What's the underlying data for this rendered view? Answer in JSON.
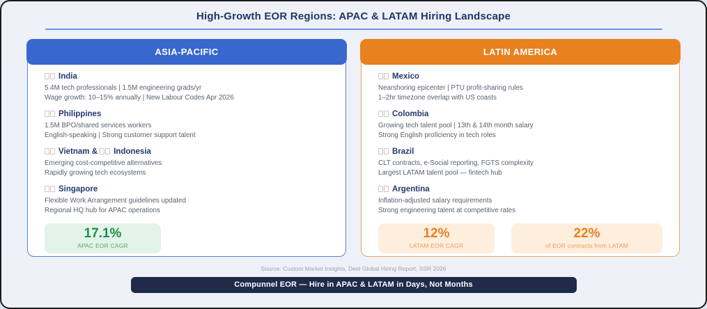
{
  "title": "High-Growth EOR Regions: APAC & LATAM Hiring Landscape",
  "source": "Source: Custom Market Insights, Deel Global Hiring Report, SSR 2026",
  "footer": "Compunnel EOR — Hire in APAC & LATAM in Days, Not Months",
  "colors": {
    "title_text": "#1e3765",
    "divider": "#6b93da",
    "footer_bg": "#1f2b48",
    "apac_accent": "#3867ce",
    "latam_accent": "#e8811f",
    "green_stat": "#1b8f4c"
  },
  "panels": [
    {
      "id": "asia-pacific",
      "header": "ASIA-PACIFIC",
      "colors": {
        "header_bg": "#3867ce",
        "border": "#5b82d8"
      },
      "entries": [
        {
          "names": [
            "India"
          ],
          "lines": [
            "5.4M tech professionals | 1.5M engineering grads/yr",
            "Wage growth: 10–15% annually | New Labour Codes Apr 2026"
          ]
        },
        {
          "names": [
            "Philippines"
          ],
          "lines": [
            "1.5M BPO/shared services workers",
            "English-speaking | Strong customer support talent"
          ]
        },
        {
          "names": [
            "Vietnam &",
            "Indonesia"
          ],
          "lines": [
            "Emerging cost-competitive alternatives",
            "Rapidly growing tech ecosystems"
          ]
        },
        {
          "names": [
            "Singapore"
          ],
          "lines": [
            "Flexible Work Arrangement guidelines updated",
            "Regional HQ hub for APAC operations"
          ]
        }
      ],
      "stats": [
        {
          "value": "17.1%",
          "label": "APAC EOR CAGR",
          "value_color": "#1b8f4c",
          "label_color": "#4fa873",
          "bg": "#e4f3e9"
        }
      ]
    },
    {
      "id": "latin-america",
      "header": "LATIN AMERICA",
      "colors": {
        "header_bg": "#e8811f",
        "border": "#eda45c"
      },
      "entries": [
        {
          "names": [
            "Mexico"
          ],
          "lines": [
            "Nearshoring epicenter | PTU profit-sharing rules",
            "1–2hr timezone overlap with US coasts"
          ]
        },
        {
          "names": [
            "Colombia"
          ],
          "lines": [
            "Growing tech talent pool | 13th & 14th month salary",
            "Strong English proficiency in tech roles"
          ]
        },
        {
          "names": [
            "Brazil"
          ],
          "lines": [
            "CLT contracts, e-Social reporting, FGTS complexity",
            "Largest LATAM talent pool — fintech hub"
          ]
        },
        {
          "names": [
            "Argentina"
          ],
          "lines": [
            "Inflation-adjusted salary requirements",
            "Strong engineering talent at competitive rates"
          ]
        }
      ],
      "stats": [
        {
          "value": "12%",
          "label": "LATAM EOR CAGR",
          "value_color": "#e8811f",
          "label_color": "#eb9c51",
          "bg": "#fdeede"
        },
        {
          "value": "22%",
          "label": "of EOR contracts from LATAM",
          "value_color": "#e8811f",
          "label_color": "#eb9c51",
          "bg": "#fdeede"
        }
      ]
    }
  ]
}
